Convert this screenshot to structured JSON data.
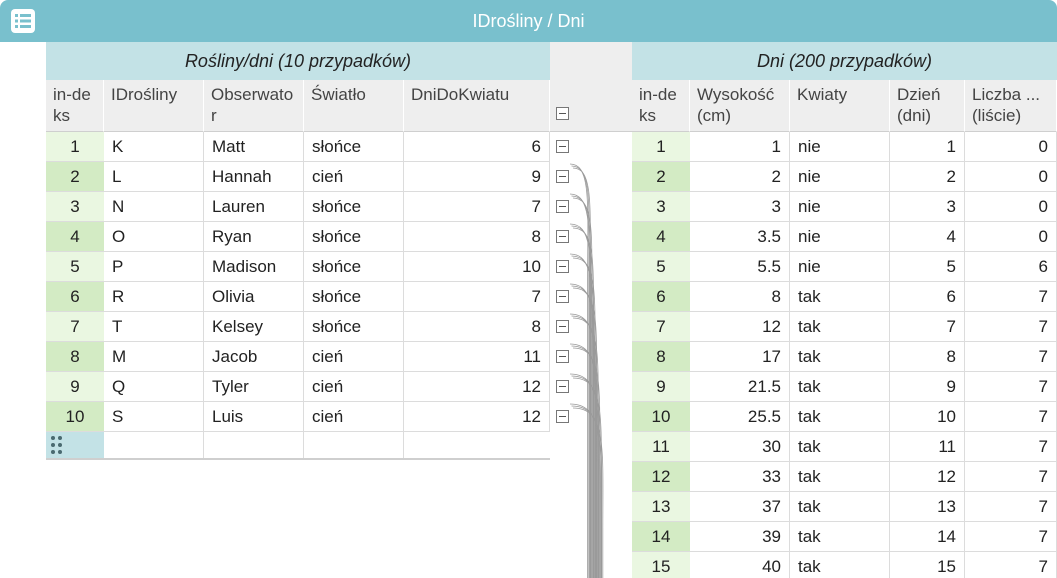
{
  "window": {
    "title": "IDrośliny / Dni"
  },
  "left_table": {
    "title": "Rośliny/dni (10 przypadków)",
    "columns": [
      "in-deks",
      "IDrośliny",
      "Obserwator",
      "Światło",
      "DniDoKwiatu"
    ],
    "rows": [
      [
        "1",
        "K",
        "Matt",
        "słońce",
        "6"
      ],
      [
        "2",
        "L",
        "Hannah",
        "cień",
        "9"
      ],
      [
        "3",
        "N",
        "Lauren",
        "słońce",
        "7"
      ],
      [
        "4",
        "O",
        "Ryan",
        "słońce",
        "8"
      ],
      [
        "5",
        "P",
        "Madison",
        "słońce",
        "10"
      ],
      [
        "6",
        "R",
        "Olivia",
        "słońce",
        "7"
      ],
      [
        "7",
        "T",
        "Kelsey",
        "słońce",
        "8"
      ],
      [
        "8",
        "M",
        "Jacob",
        "cień",
        "11"
      ],
      [
        "9",
        "Q",
        "Tyler",
        "cień",
        "12"
      ],
      [
        "10",
        "S",
        "Luis",
        "cień",
        "12"
      ]
    ]
  },
  "right_table": {
    "title": "Dni (200 przypadków)",
    "columns": [
      "in-deks",
      "Wysokość (cm)",
      "Kwiaty",
      "Dzień (dni)",
      "Liczba ... (liście)"
    ],
    "rows": [
      [
        "1",
        "1",
        "nie",
        "1",
        "0"
      ],
      [
        "2",
        "2",
        "nie",
        "2",
        "0"
      ],
      [
        "3",
        "3",
        "nie",
        "3",
        "0"
      ],
      [
        "4",
        "3.5",
        "nie",
        "4",
        "0"
      ],
      [
        "5",
        "5.5",
        "nie",
        "5",
        "6"
      ],
      [
        "6",
        "8",
        "tak",
        "6",
        "7"
      ],
      [
        "7",
        "12",
        "tak",
        "7",
        "7"
      ],
      [
        "8",
        "17",
        "tak",
        "8",
        "7"
      ],
      [
        "9",
        "21.5",
        "tak",
        "9",
        "7"
      ],
      [
        "10",
        "25.5",
        "tak",
        "10",
        "7"
      ],
      [
        "11",
        "30",
        "tak",
        "11",
        "7"
      ],
      [
        "12",
        "33",
        "tak",
        "12",
        "7"
      ],
      [
        "13",
        "37",
        "tak",
        "13",
        "7"
      ],
      [
        "14",
        "39",
        "tak",
        "14",
        "7"
      ],
      [
        "15",
        "40",
        "tak",
        "15",
        "7"
      ]
    ]
  },
  "colors": {
    "titlebar": "#79c0cd",
    "case_header": "#c3e2e6",
    "index_light": "#eaf7e1",
    "index_dark": "#d3ebc4"
  }
}
